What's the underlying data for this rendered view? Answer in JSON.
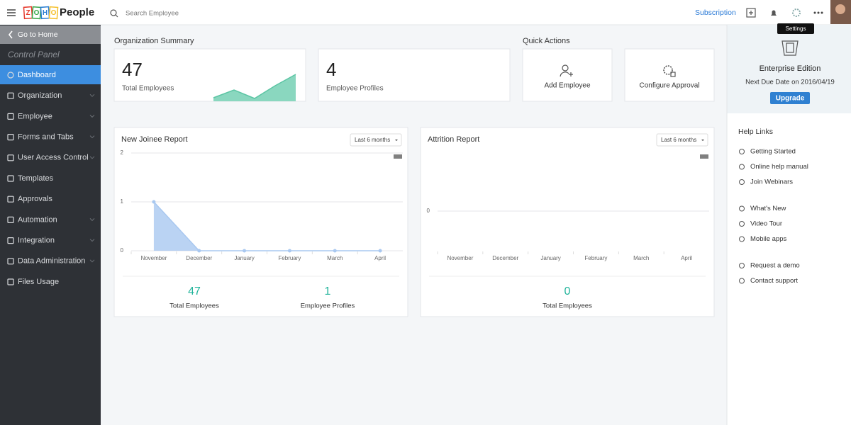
{
  "header": {
    "logo_letters": [
      "Z",
      "O",
      "H",
      "O"
    ],
    "brand": "People",
    "search_placeholder": "Search Employee",
    "subscription": "Subscription",
    "tooltip": "Settings"
  },
  "sidebar": {
    "back": "Go to Home",
    "title": "Control Panel",
    "items": [
      {
        "label": "Dashboard",
        "expandable": false
      },
      {
        "label": "Organization",
        "expandable": true
      },
      {
        "label": "Employee",
        "expandable": true
      },
      {
        "label": "Forms and Tabs",
        "expandable": true
      },
      {
        "label": "User Access Control",
        "expandable": true
      },
      {
        "label": "Templates",
        "expandable": false
      },
      {
        "label": "Approvals",
        "expandable": false
      },
      {
        "label": "Automation",
        "expandable": true
      },
      {
        "label": "Integration",
        "expandable": true
      },
      {
        "label": "Data Administration",
        "expandable": true
      },
      {
        "label": "Files Usage",
        "expandable": false
      }
    ],
    "active": 0
  },
  "summary": {
    "title": "Organization Summary",
    "cards": [
      {
        "value": 47,
        "label": "Total Employees"
      },
      {
        "value": 4,
        "label": "Employee Profiles"
      }
    ]
  },
  "quick_actions": {
    "title": "Quick Actions",
    "items": [
      "Add Employee",
      "Configure Approval"
    ]
  },
  "edition": {
    "name": "Enterprise Edition",
    "due": "Next Due Date on 2016/04/19",
    "button": "Upgrade"
  },
  "help": {
    "title": "Help Links",
    "groups": [
      [
        "Getting Started",
        "Online help manual",
        "Join Webinars"
      ],
      [
        "What's New",
        "Video Tour",
        "Mobile apps"
      ],
      [
        "Request a demo",
        "Contact support"
      ]
    ]
  },
  "reports": [
    {
      "title": "New Joinee Report",
      "filter": "Last 6 months",
      "chart_data": {
        "type": "area",
        "categories": [
          "November",
          "December",
          "January",
          "February",
          "March",
          "April"
        ],
        "values": [
          1,
          0,
          0,
          0,
          0,
          0
        ],
        "color": "#a9c8f0",
        "ylim": [
          0,
          2
        ],
        "yticks": [
          0,
          1,
          2
        ],
        "grid": true
      },
      "stats": [
        {
          "value": 47,
          "label": "Total Employees"
        },
        {
          "value": 1,
          "label": "Employee Profiles"
        }
      ]
    },
    {
      "title": "Attrition Report",
      "filter": "Last 6 months",
      "chart_data": {
        "type": "area",
        "categories": [
          "November",
          "December",
          "January",
          "February",
          "March",
          "April"
        ],
        "ylim": [
          -1,
          1
        ],
        "yticks": [
          0
        ],
        "grid": true
      },
      "stats": [
        {
          "value": 0,
          "label": "Total Employees"
        }
      ]
    }
  ]
}
